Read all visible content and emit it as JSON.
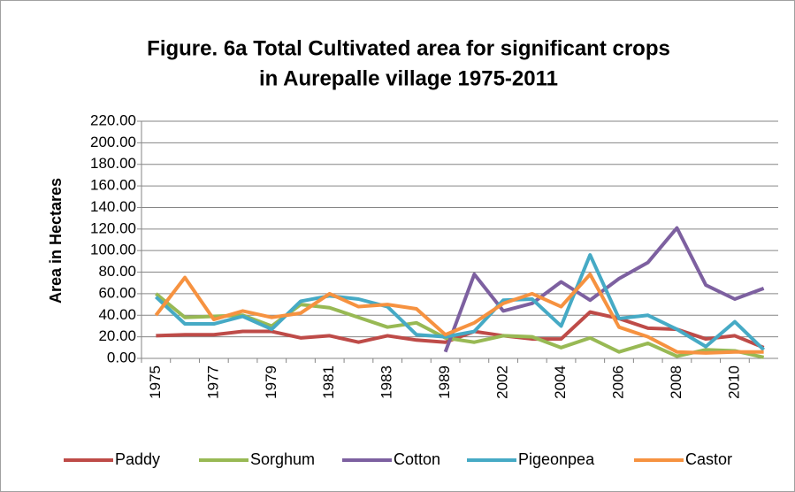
{
  "chart_data": {
    "type": "line",
    "title": [
      "Figure. 6a Total Cultivated area for significant crops",
      "in Aurepalle village 1975-2011"
    ],
    "y_label": "Area in Hectares",
    "categories": [
      "1975",
      null,
      "1977",
      null,
      "1979",
      null,
      "1981",
      null,
      "1983",
      null,
      "1989",
      null,
      "2002",
      null,
      "2004",
      null,
      "2006",
      null,
      "2008",
      null,
      "2010",
      null
    ],
    "series": [
      {
        "name": "Paddy",
        "color": "#be4b48",
        "values": [
          21,
          22,
          22,
          25,
          25,
          19,
          21,
          15,
          21,
          17,
          15,
          25,
          21,
          18,
          18,
          43,
          37,
          28,
          27,
          18,
          21,
          10
        ]
      },
      {
        "name": "Sorghum",
        "color": "#98b954",
        "values": [
          60,
          38,
          39,
          40,
          30,
          50,
          47,
          38,
          29,
          33,
          19,
          15,
          21,
          20,
          10,
          19,
          6,
          14,
          2,
          8,
          7,
          1
        ]
      },
      {
        "name": "Cotton",
        "color": "#7d60a0",
        "values": [
          null,
          null,
          null,
          null,
          null,
          null,
          null,
          null,
          null,
          null,
          6,
          78,
          44,
          51,
          71,
          54,
          74,
          89,
          121,
          68,
          55,
          65
        ]
      },
      {
        "name": "Pigeonpea",
        "color": "#46aac5",
        "values": [
          57,
          32,
          32,
          39,
          27,
          53,
          58,
          55,
          48,
          22,
          20,
          25,
          54,
          55,
          30,
          96,
          37,
          40,
          27,
          11,
          34,
          8
        ]
      },
      {
        "name": "Castor",
        "color": "#f69240",
        "values": [
          40,
          75,
          36,
          44,
          38,
          42,
          60,
          48,
          50,
          46,
          22,
          33,
          51,
          60,
          48,
          78,
          29,
          20,
          6,
          5,
          6,
          6
        ]
      }
    ],
    "ylim": [
      0,
      220
    ],
    "yticks": [
      {
        "value": 0,
        "label": "0.00"
      },
      {
        "value": 20,
        "label": "20.00"
      },
      {
        "value": 40,
        "label": "40.00"
      },
      {
        "value": 60,
        "label": "60.00"
      },
      {
        "value": 80,
        "label": "80.00"
      },
      {
        "value": 100,
        "label": "100.00"
      },
      {
        "value": 120,
        "label": "120.00"
      },
      {
        "value": 140,
        "label": "140.00"
      },
      {
        "value": 160,
        "label": "160.00"
      },
      {
        "value": 180,
        "label": "180.00"
      },
      {
        "value": 200,
        "label": "200.00"
      },
      {
        "value": 220,
        "label": "220.00"
      }
    ],
    "grid": true,
    "legend": "bottom"
  }
}
